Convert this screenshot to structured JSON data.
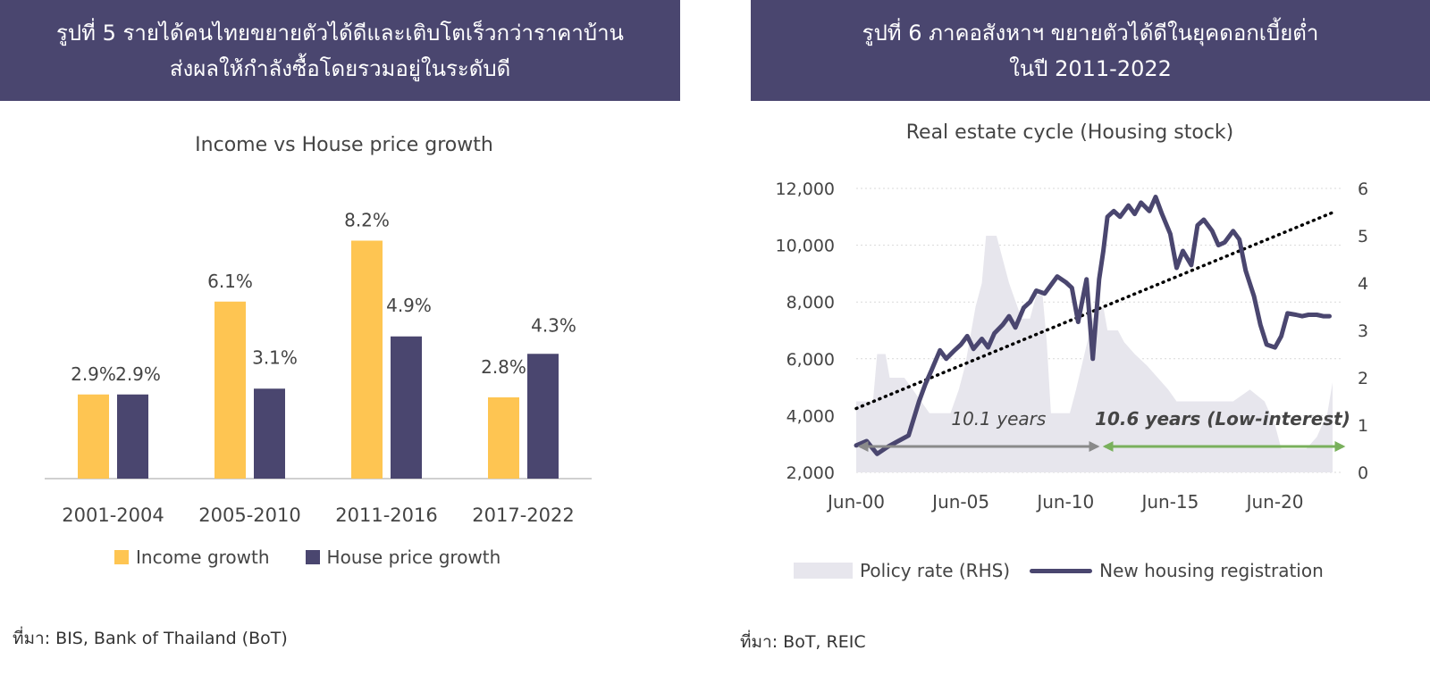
{
  "colors": {
    "header_bg": "#4a466f",
    "income": "#fec552",
    "house": "#4a466f",
    "policy_area": "#e7e6ed",
    "housing_line": "#4a466f",
    "trend": "#000000",
    "arrow_gray": "#8a8a8a",
    "arrow_green": "#79b05c"
  },
  "left": {
    "header_line1": "รูปที่ 5 รายได้คนไทยขยายตัวได้ดีและเติบโตเร็วกว่าราคาบ้าน",
    "header_line2": "ส่งผลให้กำลังซื้อโดยรวมอยู่ในระดับดี",
    "source": "ที่มา: BIS, Bank of Thailand (BoT)"
  },
  "right": {
    "header_line1": "รูปที่ 6 ภาคอสังหาฯ ขยายตัวได้ดีในยุคดอกเบี้ยต่ำ",
    "header_line2": "ในปี 2011-2022",
    "source": "ที่มา: BoT, REIC"
  },
  "chart_data": [
    {
      "type": "bar",
      "title": "Income vs House price growth",
      "categories": [
        "2001-2004",
        "2005-2010",
        "2011-2016",
        "2017-2022"
      ],
      "series": [
        {
          "name": "Income growth",
          "values": [
            2.9,
            6.1,
            8.2,
            2.8
          ],
          "labels": [
            "2.9%",
            "6.1%",
            "8.2%",
            "2.8%"
          ],
          "color": "#fec552"
        },
        {
          "name": "House price growth",
          "values": [
            2.9,
            3.1,
            4.9,
            4.3
          ],
          "labels": [
            "2.9%",
            "3.1%",
            "4.9%",
            "4.3%"
          ],
          "color": "#4a466f"
        }
      ],
      "ylim": [
        0,
        8.8
      ],
      "legend": "bottom",
      "grid": false
    },
    {
      "type": "line",
      "title": "Real estate cycle (Housing stock)",
      "x_ticks": [
        "Jun-00",
        "Jun-05",
        "Jun-10",
        "Jun-15",
        "Jun-20"
      ],
      "ylim": [
        2000,
        12000
      ],
      "y_ticks": [
        "2,000",
        "4,000",
        "6,000",
        "8,000",
        "10,000",
        "12,000"
      ],
      "y2lim": [
        0,
        6
      ],
      "y2_ticks": [
        "0",
        "1",
        "2",
        "3",
        "4",
        "5",
        "6"
      ],
      "grid": true,
      "legend": "bottom",
      "series": [
        {
          "name": "Policy rate (RHS)",
          "type": "area",
          "axis": "right",
          "color": "#e7e6ed",
          "x": [
            2000.0,
            2000.8,
            2001.0,
            2001.4,
            2001.6,
            2002.3,
            2003.5,
            2004.5,
            2004.9,
            2005.2,
            2005.4,
            2005.7,
            2006.0,
            2006.2,
            2006.7,
            2007.3,
            2007.9,
            2008.3,
            2008.6,
            2008.9,
            2009.1,
            2009.3,
            2010.2,
            2010.5,
            2010.9,
            2011.3,
            2011.8,
            2012.0,
            2012.5,
            2012.8,
            2013.3,
            2013.9,
            2014.4,
            2014.9,
            2015.3,
            2016.0,
            2018.0,
            2018.8,
            2019.5,
            2020.0,
            2020.3,
            2021.5,
            2022.0,
            2022.5,
            2022.75
          ],
          "y": [
            1.5,
            1.5,
            2.5,
            2.5,
            2.0,
            2.0,
            1.25,
            1.25,
            1.75,
            2.25,
            2.75,
            3.5,
            4.0,
            5.0,
            5.0,
            4.0,
            3.25,
            3.25,
            3.75,
            3.75,
            2.75,
            1.25,
            1.25,
            1.75,
            2.5,
            3.25,
            3.5,
            3.0,
            3.0,
            2.75,
            2.5,
            2.25,
            2.0,
            1.75,
            1.5,
            1.5,
            1.5,
            1.75,
            1.5,
            1.0,
            0.5,
            0.5,
            0.75,
            1.25,
            1.9
          ]
        },
        {
          "name": "New housing registration",
          "type": "line",
          "axis": "left",
          "color": "#4a466f",
          "x": [
            2000.0,
            2000.5,
            2001.0,
            2001.5,
            2002.0,
            2002.5,
            2003.0,
            2003.3,
            2003.6,
            2004.0,
            2004.3,
            2004.7,
            2005.0,
            2005.3,
            2005.6,
            2006.0,
            2006.3,
            2006.6,
            2007.0,
            2007.3,
            2007.6,
            2008.0,
            2008.3,
            2008.6,
            2009.0,
            2009.3,
            2009.6,
            2010.0,
            2010.3,
            2010.6,
            2011.0,
            2011.3,
            2011.6,
            2011.8,
            2012.0,
            2012.3,
            2012.6,
            2013.0,
            2013.3,
            2013.6,
            2014.0,
            2014.3,
            2014.6,
            2015.0,
            2015.3,
            2015.6,
            2016.0,
            2016.3,
            2016.6,
            2017.0,
            2017.3,
            2017.6,
            2018.0,
            2018.3,
            2018.6,
            2019.0,
            2019.3,
            2019.6,
            2020.0,
            2020.3,
            2020.6,
            2021.0,
            2021.3,
            2021.6,
            2022.0,
            2022.3,
            2022.6
          ],
          "y": [
            2950,
            3100,
            2650,
            2900,
            3100,
            3300,
            4500,
            5100,
            5600,
            6300,
            6000,
            6300,
            6500,
            6800,
            6350,
            6700,
            6400,
            6900,
            7200,
            7500,
            7100,
            7800,
            8000,
            8400,
            8300,
            8600,
            8900,
            8700,
            8500,
            7300,
            8800,
            6000,
            8800,
            9800,
            11000,
            11200,
            11000,
            11400,
            11100,
            11500,
            11200,
            11700,
            11100,
            10400,
            9200,
            9800,
            9300,
            10700,
            10900,
            10500,
            10000,
            10100,
            10500,
            10200,
            9100,
            8200,
            7200,
            6500,
            6400,
            6800,
            7600,
            7550,
            7500,
            7550,
            7550,
            7500,
            7500
          ]
        },
        {
          "name": "Trend",
          "type": "dotted",
          "axis": "left",
          "color": "#000000",
          "x": [
            2000.0,
            2022.75
          ],
          "y": [
            4250,
            11150
          ]
        }
      ],
      "annotations": [
        {
          "text": "10.1 years",
          "from": 2000.0,
          "to": 2011.7,
          "color": "#8a8a8a"
        },
        {
          "text": "10.6 years (Low-interest)",
          "from": 2011.7,
          "to": 2022.75,
          "color": "#79b05c"
        }
      ]
    }
  ]
}
